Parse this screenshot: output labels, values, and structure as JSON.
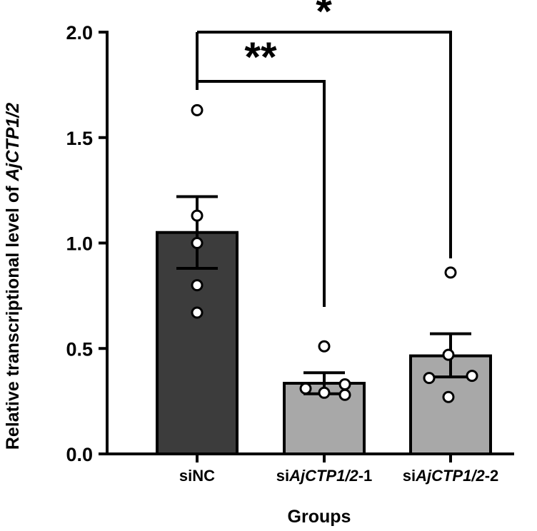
{
  "chart_data": {
    "type": "bar",
    "title": "",
    "xlabel": "Groups",
    "ylabel_prefix": "Relative transcriptional level of ",
    "ylabel_italic": "AjCTP1/2",
    "ylim": [
      0,
      2.0
    ],
    "yticks": [
      "0.0",
      "0.5",
      "1.0",
      "1.5",
      "2.0"
    ],
    "categories": [
      {
        "prefix": "si",
        "italic": "NC",
        "suffix": "",
        "italic_style": false
      },
      {
        "prefix": "si",
        "italic": "AjCTP1/2",
        "suffix": "-1",
        "italic_style": true
      },
      {
        "prefix": "si",
        "italic": "AjCTP1/2",
        "suffix": "-2",
        "italic_style": true
      }
    ],
    "values": [
      1.05,
      0.335,
      0.465
    ],
    "error_upper": [
      1.22,
      0.385,
      0.57
    ],
    "error_lower": [
      0.88,
      0.285,
      0.365
    ],
    "points": [
      [
        1.63,
        1.13,
        1.0,
        0.8,
        0.67
      ],
      [
        0.51,
        0.33,
        0.31,
        0.29,
        0.28
      ],
      [
        0.86,
        0.47,
        0.37,
        0.36,
        0.27
      ]
    ],
    "significance": [
      {
        "from": 0,
        "to": 1,
        "label": "**"
      },
      {
        "from": 0,
        "to": 2,
        "label": "*"
      }
    ],
    "colors": {
      "bar_control": "#3c3c3c",
      "bar_treatment": "#a8a8a8",
      "point_fill": "#ffffff",
      "stroke": "#000000"
    }
  }
}
